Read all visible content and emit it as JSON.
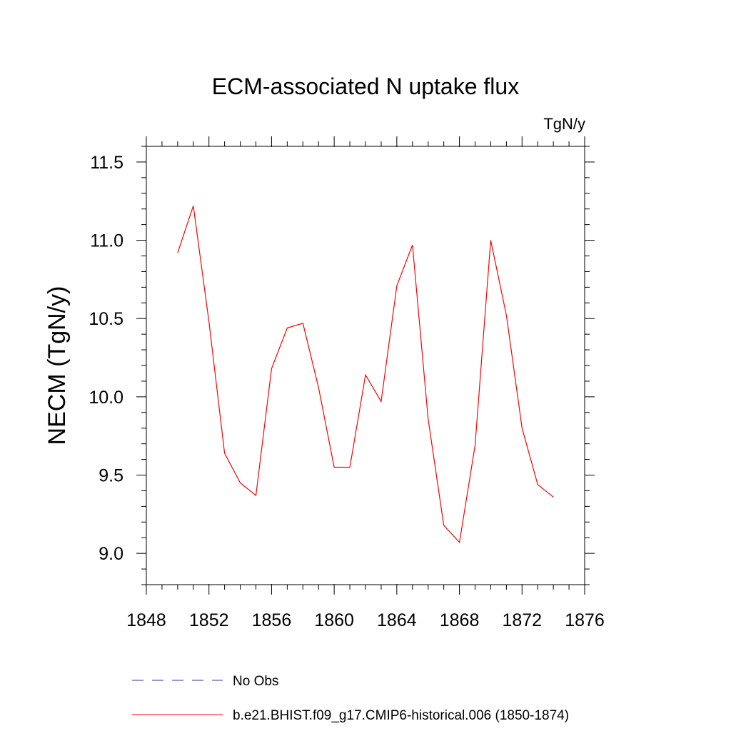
{
  "chart_data": {
    "type": "line",
    "title": "ECM-associated N uptake flux",
    "units_label": "TgN/y",
    "ylabel": "NECM  (TgN/y)",
    "xlabel": "",
    "xlim": [
      1848,
      1876
    ],
    "ylim": [
      8.8,
      11.6
    ],
    "x_ticks": [
      1848,
      1852,
      1856,
      1860,
      1864,
      1868,
      1872,
      1876
    ],
    "x_tick_labels": [
      "1848",
      "1852",
      "1856",
      "1860",
      "1864",
      "1868",
      "1872",
      "1876"
    ],
    "y_ticks": [
      9.0,
      9.5,
      10.0,
      10.5,
      11.0,
      11.5
    ],
    "y_tick_labels": [
      "9.0",
      "9.5",
      "10.0",
      "10.5",
      "11.0",
      "11.5"
    ],
    "grid": false,
    "legend_placement": "bottom",
    "series": [
      {
        "name": "b.e21.BHIST.f09_g17.CMIP6-historical.006 (1850-1874)",
        "color": "#ff0000",
        "x": [
          1850,
          1851,
          1852,
          1853,
          1854,
          1855,
          1856,
          1857,
          1858,
          1859,
          1860,
          1861,
          1862,
          1863,
          1864,
          1865,
          1866,
          1867,
          1868,
          1869,
          1870,
          1871,
          1872,
          1873,
          1874
        ],
        "y": [
          10.92,
          11.22,
          10.48,
          9.64,
          9.45,
          9.37,
          10.18,
          10.44,
          10.47,
          10.06,
          9.55,
          9.55,
          10.14,
          9.97,
          10.71,
          10.97,
          9.86,
          9.18,
          9.07,
          9.69,
          11.0,
          10.52,
          9.8,
          9.44,
          9.36
        ]
      }
    ],
    "legend": [
      {
        "label": "No Obs",
        "color": "#3333aa",
        "style": "dashed"
      },
      {
        "label": "b.e21.BHIST.f09_g17.CMIP6-historical.006 (1850-1874)",
        "color": "#ff0000",
        "style": "solid"
      }
    ]
  }
}
